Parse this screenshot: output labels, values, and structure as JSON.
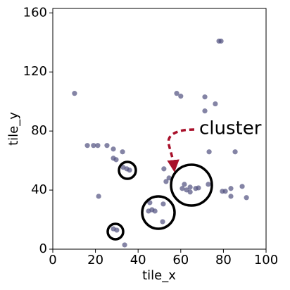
{
  "chart_data": {
    "type": "scatter",
    "xlabel": "tile_x",
    "ylabel": "tile_y",
    "annotation": "cluster",
    "color": "#50507f",
    "xlim": [
      0,
      100
    ],
    "ylim": [
      0,
      163
    ],
    "xticks": [
      0,
      20,
      40,
      60,
      80,
      100
    ],
    "yticks": [
      0,
      40,
      80,
      120,
      160
    ],
    "x": [
      10.2,
      16.2,
      19.1,
      21.1,
      25.4,
      28.4,
      32.7,
      28.4,
      29.7,
      33,
      34.7,
      36,
      21.5,
      28.4,
      30,
      33.7,
      45.5,
      44.9,
      46.5,
      47.9,
      51.8,
      51.5,
      52.1,
      53.1,
      54.5,
      58.1,
      60,
      61.7,
      60.7,
      62.7,
      64.4,
      67,
      68.3,
      64.4,
      71.3,
      71.3,
      76.2,
      77.9,
      78.9,
      73.3,
      85.5,
      72.9,
      79.5,
      80.9,
      83.5,
      83.5,
      88.8,
      90.8
    ],
    "y": [
      105.5,
      70.2,
      70.2,
      70.2,
      70.2,
      67.8,
      65.9,
      61.6,
      60.6,
      55.4,
      54.4,
      53.5,
      35.8,
      13.8,
      12.9,
      2.9,
      31.5,
      25.8,
      26.7,
      25.8,
      30.6,
      18.6,
      54.4,
      45.8,
      48.2,
      105.5,
      103.6,
      43.9,
      41.1,
      40.1,
      42,
      41.1,
      41.5,
      38.7,
      103.1,
      93.6,
      98.4,
      140.9,
      140.9,
      65.9,
      65.9,
      43.9,
      39.2,
      39.2,
      41.1,
      35.8,
      42.5,
      34.9
    ]
  }
}
